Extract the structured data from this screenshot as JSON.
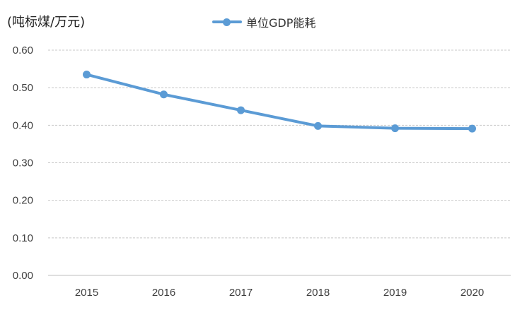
{
  "unit_label": "(吨标煤/万元)",
  "legend_label": "单位GDP能耗",
  "colors": {
    "series": "#5b9bd5",
    "grid": "#c8c8c8",
    "axis": "#bfbfbf",
    "tick_text": "#404040"
  },
  "chart_data": {
    "type": "line",
    "x": [
      "2015",
      "2016",
      "2017",
      "2018",
      "2019",
      "2020"
    ],
    "series": [
      {
        "name": "单位GDP能耗",
        "values": [
          0.535,
          0.482,
          0.44,
          0.398,
          0.392,
          0.391
        ]
      }
    ],
    "ylabel": "(吨标煤/万元)",
    "ylim": [
      0,
      0.6
    ],
    "yticks": [
      "0.00",
      "0.10",
      "0.20",
      "0.30",
      "0.40",
      "0.50",
      "0.60"
    ],
    "grid": true,
    "legend": "top"
  }
}
